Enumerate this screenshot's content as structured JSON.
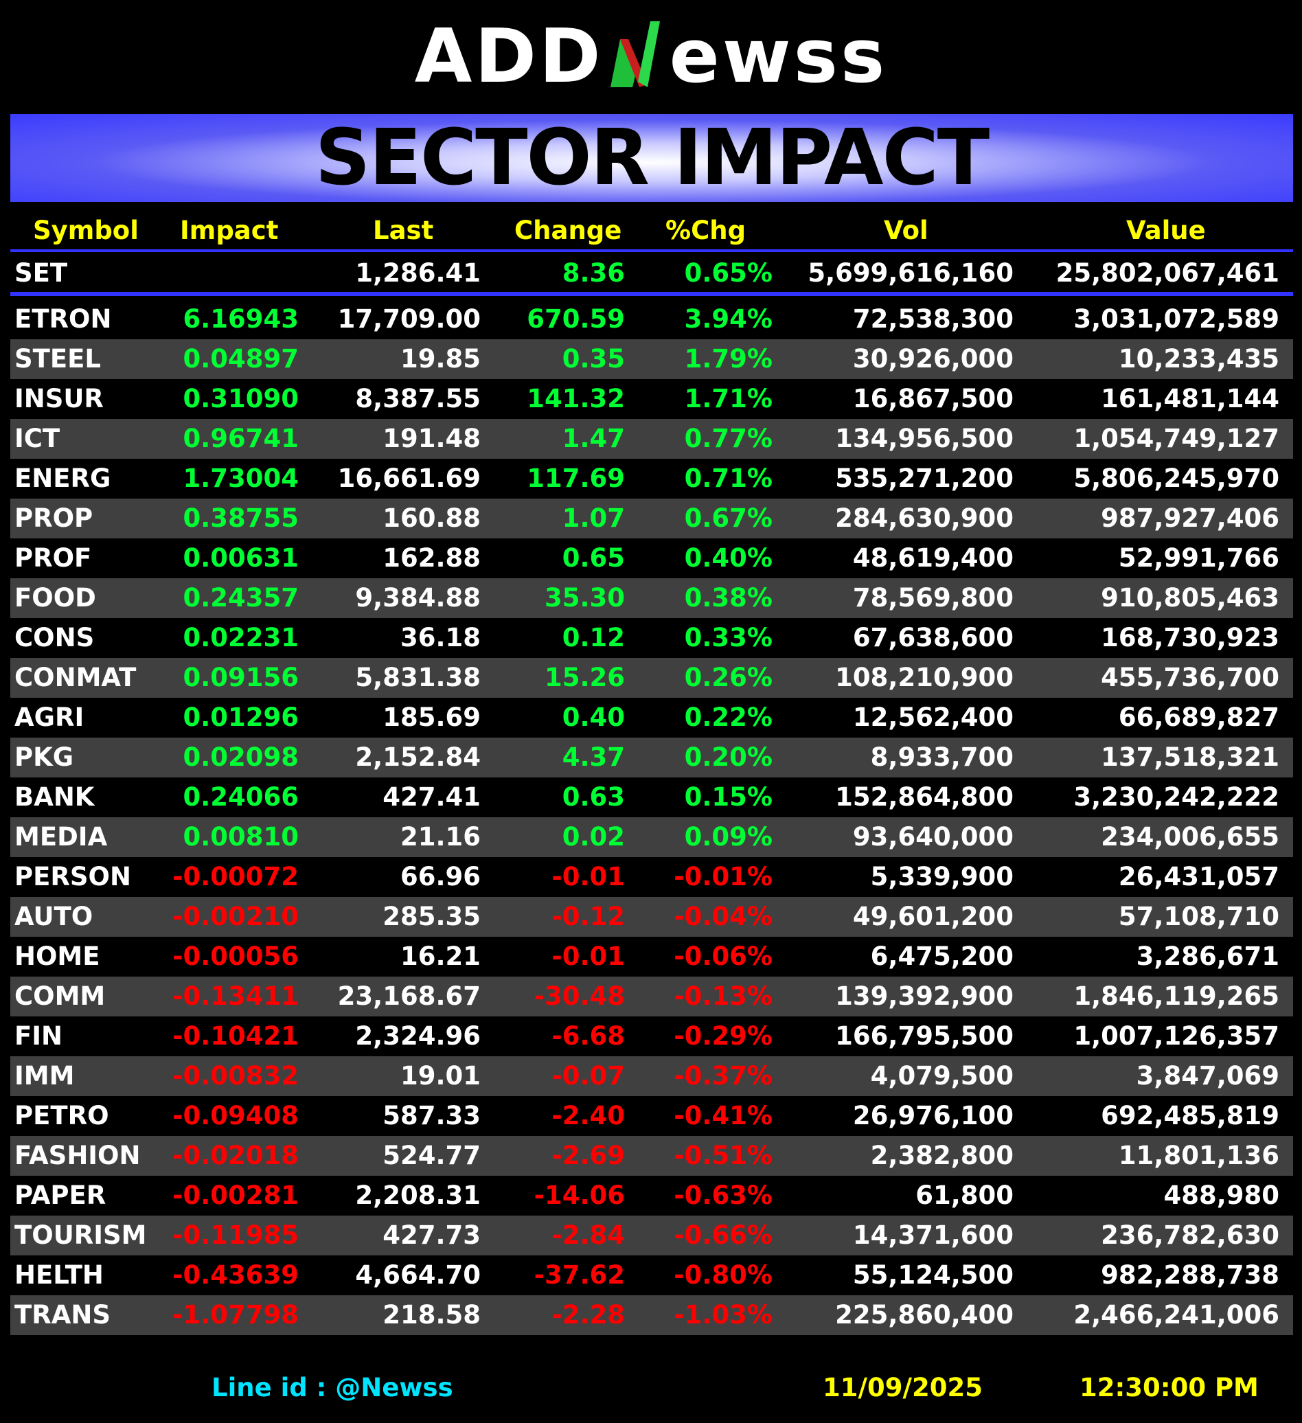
{
  "logo": {
    "left": "ADD",
    "right": "ewss"
  },
  "banner": {
    "title": "SECTOR IMPACT"
  },
  "columns": {
    "symbol": "Symbol",
    "impact": "Impact",
    "last": "Last",
    "change": "Change",
    "pct": "%Chg",
    "vol": "Vol",
    "value": "Value"
  },
  "set": {
    "symbol": "SET",
    "last": "1,286.41",
    "change": "8.36",
    "pct": "0.65%",
    "vol": "5,699,616,160",
    "value": "25,802,067,461"
  },
  "colors": {
    "up": "#00ff33",
    "down": "#ff0000",
    "header": "#ffff00",
    "banner": "#3b3bff",
    "alt_row": "#404040"
  },
  "rows": [
    {
      "symbol": "ETRON",
      "impact": "6.16943",
      "last": "17,709.00",
      "change": "670.59",
      "pct": "3.94%",
      "vol": "72,538,300",
      "value": "3,031,072,589",
      "dir": "up"
    },
    {
      "symbol": "STEEL",
      "impact": "0.04897",
      "last": "19.85",
      "change": "0.35",
      "pct": "1.79%",
      "vol": "30,926,000",
      "value": "10,233,435",
      "dir": "up"
    },
    {
      "symbol": "INSUR",
      "impact": "0.31090",
      "last": "8,387.55",
      "change": "141.32",
      "pct": "1.71%",
      "vol": "16,867,500",
      "value": "161,481,144",
      "dir": "up"
    },
    {
      "symbol": "ICT",
      "impact": "0.96741",
      "last": "191.48",
      "change": "1.47",
      "pct": "0.77%",
      "vol": "134,956,500",
      "value": "1,054,749,127",
      "dir": "up"
    },
    {
      "symbol": "ENERG",
      "impact": "1.73004",
      "last": "16,661.69",
      "change": "117.69",
      "pct": "0.71%",
      "vol": "535,271,200",
      "value": "5,806,245,970",
      "dir": "up"
    },
    {
      "symbol": "PROP",
      "impact": "0.38755",
      "last": "160.88",
      "change": "1.07",
      "pct": "0.67%",
      "vol": "284,630,900",
      "value": "987,927,406",
      "dir": "up"
    },
    {
      "symbol": "PROF",
      "impact": "0.00631",
      "last": "162.88",
      "change": "0.65",
      "pct": "0.40%",
      "vol": "48,619,400",
      "value": "52,991,766",
      "dir": "up"
    },
    {
      "symbol": "FOOD",
      "impact": "0.24357",
      "last": "9,384.88",
      "change": "35.30",
      "pct": "0.38%",
      "vol": "78,569,800",
      "value": "910,805,463",
      "dir": "up"
    },
    {
      "symbol": "CONS",
      "impact": "0.02231",
      "last": "36.18",
      "change": "0.12",
      "pct": "0.33%",
      "vol": "67,638,600",
      "value": "168,730,923",
      "dir": "up"
    },
    {
      "symbol": "CONMAT",
      "impact": "0.09156",
      "last": "5,831.38",
      "change": "15.26",
      "pct": "0.26%",
      "vol": "108,210,900",
      "value": "455,736,700",
      "dir": "up"
    },
    {
      "symbol": "AGRI",
      "impact": "0.01296",
      "last": "185.69",
      "change": "0.40",
      "pct": "0.22%",
      "vol": "12,562,400",
      "value": "66,689,827",
      "dir": "up"
    },
    {
      "symbol": "PKG",
      "impact": "0.02098",
      "last": "2,152.84",
      "change": "4.37",
      "pct": "0.20%",
      "vol": "8,933,700",
      "value": "137,518,321",
      "dir": "up"
    },
    {
      "symbol": "BANK",
      "impact": "0.24066",
      "last": "427.41",
      "change": "0.63",
      "pct": "0.15%",
      "vol": "152,864,800",
      "value": "3,230,242,222",
      "dir": "up"
    },
    {
      "symbol": "MEDIA",
      "impact": "0.00810",
      "last": "21.16",
      "change": "0.02",
      "pct": "0.09%",
      "vol": "93,640,000",
      "value": "234,006,655",
      "dir": "up"
    },
    {
      "symbol": "PERSON",
      "impact": "-0.00072",
      "last": "66.96",
      "change": "-0.01",
      "pct": "-0.01%",
      "vol": "5,339,900",
      "value": "26,431,057",
      "dir": "down"
    },
    {
      "symbol": "AUTO",
      "impact": "-0.00210",
      "last": "285.35",
      "change": "-0.12",
      "pct": "-0.04%",
      "vol": "49,601,200",
      "value": "57,108,710",
      "dir": "down"
    },
    {
      "symbol": "HOME",
      "impact": "-0.00056",
      "last": "16.21",
      "change": "-0.01",
      "pct": "-0.06%",
      "vol": "6,475,200",
      "value": "3,286,671",
      "dir": "down"
    },
    {
      "symbol": "COMM",
      "impact": "-0.13411",
      "last": "23,168.67",
      "change": "-30.48",
      "pct": "-0.13%",
      "vol": "139,392,900",
      "value": "1,846,119,265",
      "dir": "down"
    },
    {
      "symbol": "FIN",
      "impact": "-0.10421",
      "last": "2,324.96",
      "change": "-6.68",
      "pct": "-0.29%",
      "vol": "166,795,500",
      "value": "1,007,126,357",
      "dir": "down"
    },
    {
      "symbol": "IMM",
      "impact": "-0.00832",
      "last": "19.01",
      "change": "-0.07",
      "pct": "-0.37%",
      "vol": "4,079,500",
      "value": "3,847,069",
      "dir": "down"
    },
    {
      "symbol": "PETRO",
      "impact": "-0.09408",
      "last": "587.33",
      "change": "-2.40",
      "pct": "-0.41%",
      "vol": "26,976,100",
      "value": "692,485,819",
      "dir": "down"
    },
    {
      "symbol": "FASHION",
      "impact": "-0.02018",
      "last": "524.77",
      "change": "-2.69",
      "pct": "-0.51%",
      "vol": "2,382,800",
      "value": "11,801,136",
      "dir": "down"
    },
    {
      "symbol": "PAPER",
      "impact": "-0.00281",
      "last": "2,208.31",
      "change": "-14.06",
      "pct": "-0.63%",
      "vol": "61,800",
      "value": "488,980",
      "dir": "down"
    },
    {
      "symbol": "TOURISM",
      "impact": "-0.11985",
      "last": "427.73",
      "change": "-2.84",
      "pct": "-0.66%",
      "vol": "14,371,600",
      "value": "236,782,630",
      "dir": "down"
    },
    {
      "symbol": "HELTH",
      "impact": "-0.43639",
      "last": "4,664.70",
      "change": "-37.62",
      "pct": "-0.80%",
      "vol": "55,124,500",
      "value": "982,288,738",
      "dir": "down"
    },
    {
      "symbol": "TRANS",
      "impact": "-1.07798",
      "last": "218.58",
      "change": "-2.28",
      "pct": "-1.03%",
      "vol": "225,860,400",
      "value": "2,466,241,006",
      "dir": "down"
    }
  ],
  "footer": {
    "line_id": "Line id  : @Newss",
    "date": "11/09/2025",
    "time": "12:30:00 PM"
  }
}
